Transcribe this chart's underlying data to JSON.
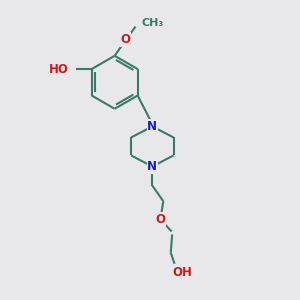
{
  "bg_color": "#e8e8eb",
  "bond_color": "#3a7a6a",
  "N_color": "#1a1acc",
  "O_color": "#cc1a1a",
  "line_width": 1.5,
  "font_size": 8.5,
  "fig_size": [
    3.0,
    3.0
  ],
  "dpi": 100,
  "xlim": [
    0,
    10
  ],
  "ylim": [
    0,
    10
  ]
}
